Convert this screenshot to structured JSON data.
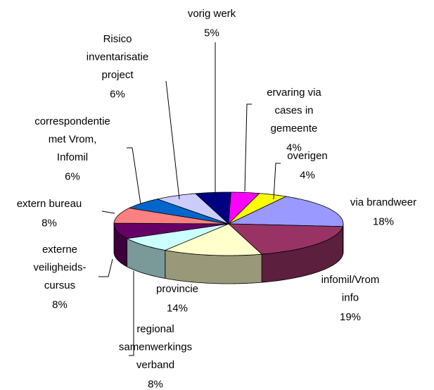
{
  "chart_data": {
    "type": "pie3d",
    "categories": [
      [
        "via brandweer"
      ],
      [
        "infomil/Vrom",
        "info"
      ],
      [
        "provincie"
      ],
      [
        "regional",
        "samenwerkings",
        "verband"
      ],
      [
        "externe",
        "veiligheids-",
        "cursus"
      ],
      [
        "extern bureau"
      ],
      [
        "correspondentie",
        "met Vrom,",
        "Infomil"
      ],
      [
        "Risico",
        "inventarisatie",
        "project"
      ],
      [
        "vorig werk"
      ],
      [
        "ervaring via",
        "cases in",
        "gemeente"
      ],
      [
        "overigen"
      ]
    ],
    "values": [
      18,
      19,
      14,
      8,
      8,
      8,
      6,
      6,
      5,
      4,
      4
    ],
    "value_labels": [
      "18%",
      "19%",
      "14%",
      "8%",
      "8%",
      "8%",
      "6%",
      "6%",
      "5%",
      "4%",
      "4%"
    ],
    "colors": [
      "#9999ff",
      "#993366",
      "#ffffcc",
      "#ccffff",
      "#660066",
      "#ff8080",
      "#0066cc",
      "#ccccff",
      "#000080",
      "#ff00ff",
      "#ffff00"
    ]
  }
}
